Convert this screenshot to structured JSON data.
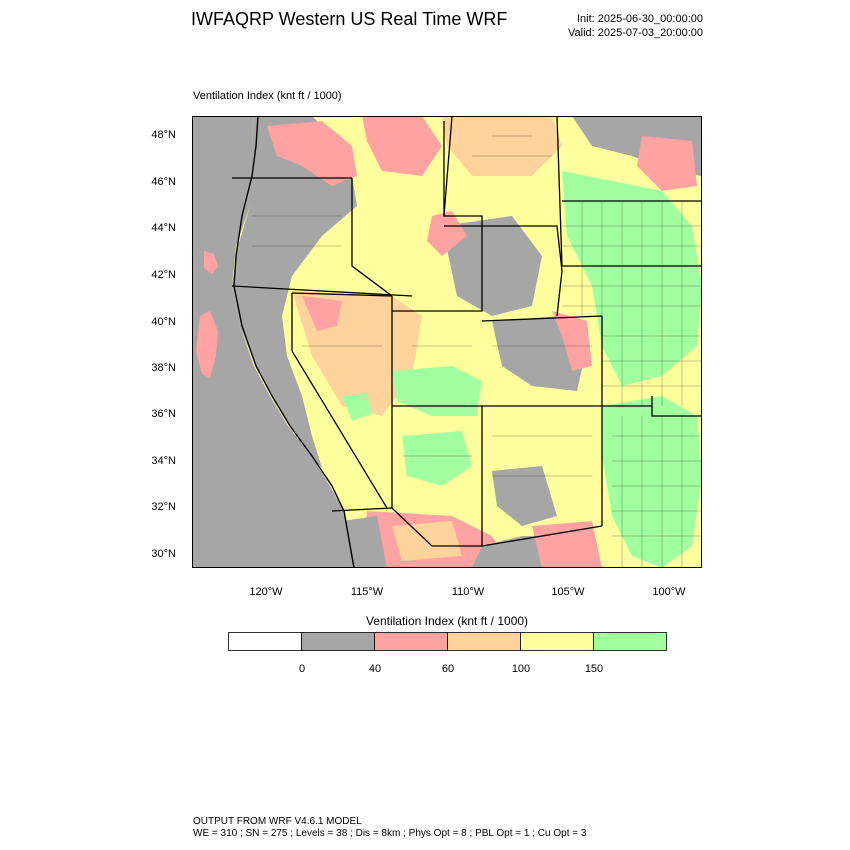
{
  "header": {
    "title": "IWFAQRP Western US Real Time WRF",
    "init": "Init: 2025-06-30_00:00:00",
    "valid": "Valid: 2025-07-03_20:00:00"
  },
  "plot": {
    "label": "Ventilation Index   (knt ft / 1000)"
  },
  "axes": {
    "lat_labels": [
      "48°N",
      "46°N",
      "44°N",
      "42°N",
      "40°N",
      "38°N",
      "36°N",
      "34°N",
      "32°N",
      "30°N"
    ],
    "lon_labels": [
      "120°W",
      "115°W",
      "110°W",
      "105°W",
      "100°W"
    ]
  },
  "colorbar": {
    "title": "Ventilation Index   (knt ft / 1000)",
    "tick_labels": [
      "0",
      "40",
      "60",
      "100",
      "150"
    ],
    "colors": [
      "#ffffff",
      "#a6a6a6",
      "#ffa2a2",
      "#ffd39c",
      "#ffff9e",
      "#a2ffa0"
    ]
  },
  "footer": {
    "line1": "OUTPUT FROM WRF V4.6.1 MODEL",
    "line2": "WE = 310 ; SN = 275 ; Levels = 38 ; Dis = 8km ; Phys Opt = 8 ; PBL Opt = 1 ; Cu Opt = 3"
  }
}
